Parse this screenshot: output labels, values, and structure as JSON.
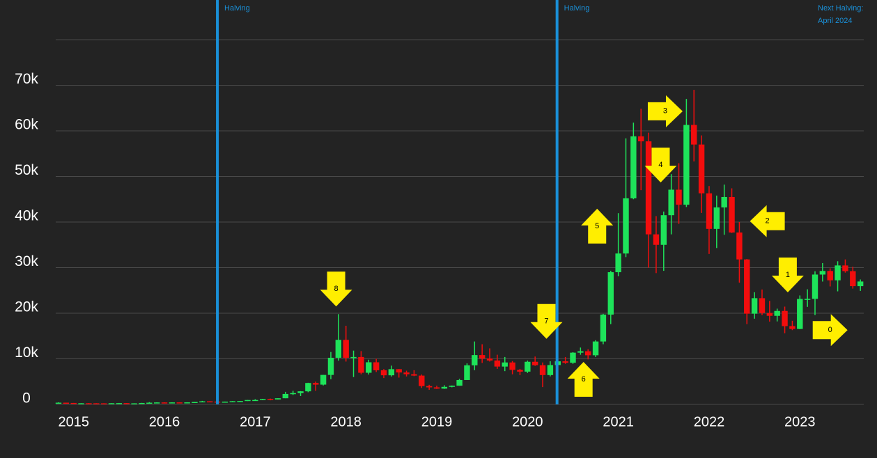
{
  "chart_data": {
    "type": "candlestick",
    "categories": [
      null,
      null,
      "2015",
      null,
      null,
      null,
      null,
      null,
      null,
      null,
      null,
      null,
      null,
      null,
      "2016",
      null,
      null,
      null,
      null,
      null,
      null,
      null,
      null,
      null,
      null,
      null,
      "2017",
      null,
      null,
      null,
      null,
      null,
      null,
      null,
      null,
      null,
      null,
      null,
      "2018",
      null,
      null,
      null,
      null,
      null,
      null,
      null,
      null,
      null,
      null,
      null,
      "2019",
      null,
      null,
      null,
      null,
      null,
      null,
      null,
      null,
      null,
      null,
      null,
      "2020",
      null,
      null,
      null,
      null,
      null,
      null,
      null,
      null,
      null,
      null,
      null,
      "2021",
      null,
      null,
      null,
      null,
      null,
      null,
      null,
      null,
      null,
      null,
      null,
      "2022",
      null,
      null,
      null,
      null,
      null,
      null,
      null,
      null,
      null,
      null,
      null,
      "2023",
      null,
      null,
      null,
      null,
      null,
      null,
      null,
      null
    ],
    "open": [
      338,
      378,
      320,
      217,
      254,
      244,
      236,
      230,
      263,
      284,
      230,
      236,
      314,
      378,
      430,
      369,
      437,
      416,
      448,
      531,
      674,
      624,
      575,
      609,
      700,
      745,
      964,
      970,
      1190,
      1080,
      1350,
      2300,
      2480,
      2875,
      4700,
      4340,
      6470,
      10230,
      14160,
      10220,
      10400,
      6940,
      9240,
      7490,
      6390,
      7730,
      7000,
      6620,
      6320,
      4020,
      3740,
      3460,
      3850,
      4100,
      5350,
      8570,
      10820,
      10080,
      9630,
      8300,
      9200,
      7570,
      7190,
      9350,
      8600,
      6440,
      8630,
      9450,
      9140,
      11350,
      11660,
      10780,
      13800,
      19700,
      29000,
      33100,
      45200,
      58800,
      57700,
      37300,
      35000,
      41500,
      47100,
      43800,
      61300,
      57000,
      46300,
      38500,
      43200,
      45500,
      37700,
      31800,
      19900,
      23300,
      20050,
      19430,
      20500,
      17170,
      16550,
      23130,
      23150,
      28480,
      29270,
      27220,
      30480,
      29230,
      25940
    ],
    "high": [
      457,
      385,
      320,
      265,
      300,
      261,
      248,
      268,
      318,
      285,
      244,
      334,
      503,
      465,
      462,
      448,
      440,
      467,
      549,
      779,
      704,
      626,
      626,
      735,
      757,
      970,
      1150,
      1210,
      1280,
      1350,
      2760,
      2980,
      2920,
      4750,
      5000,
      6470,
      11500,
      19800,
      17250,
      11800,
      11700,
      9800,
      10000,
      7760,
      8500,
      7760,
      7400,
      7500,
      6550,
      4300,
      4100,
      4200,
      4150,
      5600,
      9000,
      13800,
      13200,
      12300,
      10900,
      10400,
      9500,
      7800,
      9600,
      10500,
      9200,
      9460,
      10080,
      10400,
      11450,
      12470,
      12090,
      14080,
      19870,
      29300,
      41950,
      58350,
      61800,
      64850,
      59600,
      41300,
      42300,
      50500,
      52900,
      67000,
      69000,
      59000,
      47900,
      45800,
      48200,
      47400,
      40000,
      31900,
      24600,
      25200,
      22700,
      21000,
      21450,
      18350,
      23900,
      25250,
      29200,
      31000,
      29850,
      31400,
      31800,
      30200,
      27400
    ],
    "low": [
      320,
      311,
      172,
      212,
      236,
      215,
      226,
      219,
      253,
      199,
      223,
      236,
      299,
      354,
      365,
      364,
      397,
      414,
      444,
      519,
      612,
      535,
      570,
      604,
      679,
      740,
      785,
      915,
      900,
      1060,
      1350,
      2080,
      1840,
      2680,
      2970,
      4160,
      5520,
      9600,
      9400,
      6000,
      6600,
      6550,
      7100,
      5780,
      6120,
      5880,
      6130,
      6200,
      3600,
      3200,
      3400,
      3400,
      3750,
      4100,
      5350,
      7500,
      9100,
      9400,
      7800,
      7300,
      6600,
      6430,
      6900,
      8450,
      3800,
      6150,
      8130,
      8900,
      8900,
      10900,
      9880,
      10400,
      13200,
      17600,
      28100,
      32300,
      45000,
      47000,
      30000,
      28800,
      29300,
      37300,
      39600,
      43300,
      53300,
      42000,
      33000,
      34300,
      37200,
      37600,
      26700,
      17600,
      18800,
      19600,
      18150,
      18200,
      15600,
      16300,
      16500,
      21400,
      19600,
      26950,
      25880,
      24800,
      28900,
      25400,
      24900
    ],
    "close": [
      378,
      320,
      217,
      254,
      244,
      236,
      230,
      263,
      284,
      230,
      236,
      314,
      378,
      430,
      369,
      437,
      416,
      448,
      531,
      674,
      624,
      575,
      609,
      700,
      745,
      964,
      970,
      1190,
      1080,
      1350,
      2300,
      2480,
      2875,
      4700,
      4340,
      6470,
      10230,
      14160,
      10220,
      10400,
      6940,
      9240,
      7490,
      6390,
      7730,
      7000,
      6620,
      6320,
      4020,
      3740,
      3460,
      3850,
      4100,
      5350,
      8570,
      10820,
      10080,
      9630,
      8300,
      9200,
      7570,
      7190,
      9350,
      8600,
      6440,
      8630,
      9450,
      9140,
      11350,
      11660,
      10780,
      13800,
      19700,
      29000,
      33100,
      45200,
      58800,
      57700,
      37300,
      35000,
      41500,
      47100,
      43800,
      61300,
      57000,
      46300,
      38500,
      43200,
      45500,
      37700,
      31800,
      19900,
      23300,
      20050,
      19430,
      20500,
      17170,
      16550,
      23130,
      23150,
      28480,
      29270,
      27220,
      30480,
      29230,
      25940,
      26960
    ],
    "up_color": "#1ee35a",
    "down_color": "#f20d0d",
    "ylim": [
      0,
      80000
    ],
    "yticks": [
      0,
      {
        "value": 10000,
        "label": "10k"
      },
      {
        "value": 20000,
        "label": "20k"
      },
      {
        "value": 30000,
        "label": "30k"
      },
      {
        "value": 40000,
        "label": "40k"
      },
      {
        "value": 50000,
        "label": "50k"
      },
      {
        "value": 60000,
        "label": "60k"
      },
      {
        "value": 70000,
        "label": "70k"
      }
    ],
    "grid": true,
    "halvings": [
      {
        "label": "Halving",
        "x": 21
      },
      {
        "label": "Halving",
        "x": 65.9
      }
    ],
    "halving_color": "#1a90d8",
    "next_halving": [
      "Next Halving:",
      "April 2024"
    ],
    "arrow_color": "#ffee00",
    "arrows": [
      {
        "label": "8",
        "x": 36.7,
        "y": 25300,
        "direction": "down"
      },
      {
        "label": "7",
        "x": 64.5,
        "y": 18200,
        "direction": "down"
      },
      {
        "label": "6",
        "x": 69.4,
        "y": 5500,
        "direction": "up"
      },
      {
        "label": "5",
        "x": 71.2,
        "y": 39100,
        "direction": "up"
      },
      {
        "label": "4",
        "x": 79.6,
        "y": 52500,
        "direction": "down"
      },
      {
        "label": "3",
        "x": 80.2,
        "y": 64300,
        "direction": "right"
      },
      {
        "label": "2",
        "x": 93.7,
        "y": 40200,
        "direction": "left"
      },
      {
        "label": "1",
        "x": 96.4,
        "y": 28400,
        "direction": "down"
      },
      {
        "label": "0",
        "x": 102,
        "y": 16300,
        "direction": "right"
      }
    ]
  }
}
